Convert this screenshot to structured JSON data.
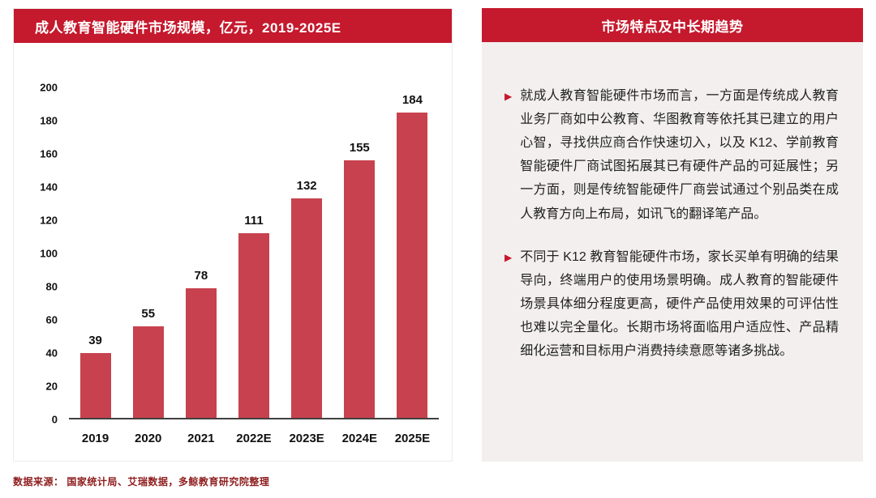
{
  "chart_panel": {
    "title": "成人教育智能硬件市场规模，亿元，2019-2025E"
  },
  "chart_data": {
    "type": "bar",
    "categories": [
      "2019",
      "2020",
      "2021",
      "2022E",
      "2023E",
      "2024E",
      "2025E"
    ],
    "values": [
      39,
      55,
      78,
      111,
      132,
      155,
      184
    ],
    "title": "成人教育智能硬件市场规模，亿元，2019-2025E",
    "xlabel": "",
    "ylabel": "",
    "ylim": [
      0,
      200
    ],
    "ytick_step": 20,
    "grid": false,
    "legend": false,
    "bar_color": "#c7424e"
  },
  "info_panel": {
    "title": "市场特点及中长期趋势",
    "bullet_icon": "▶",
    "bullets": [
      "就成人教育智能硬件市场而言，一方面是传统成人教育业务厂商如中公教育、华图教育等依托其已建立的用户心智，寻找供应商合作快速切入，以及 K12、学前教育智能硬件厂商试图拓展其已有硬件产品的可延展性；另一方面，则是传统智能硬件厂商尝试通过个别品类在成人教育方向上布局，如讯飞的翻译笔产品。",
      "不同于 K12 教育智能硬件市场，家长买单有明确的结果导向，终端用户的使用场景明确。成人教育的智能硬件场景具体细分程度更高，硬件产品使用效果的可评估性也难以完全量化。长期市场将面临用户适应性、产品精细化运营和目标用户消费持续意愿等诸多挑战。"
    ]
  },
  "footer": {
    "source": "数据来源：  国家统计局、艾瑞数据，多鲸教育研究院整理"
  },
  "colors": {
    "header_red": "#c5192d",
    "bar_red": "#c7424e",
    "panel_bg": "#f2efee"
  }
}
